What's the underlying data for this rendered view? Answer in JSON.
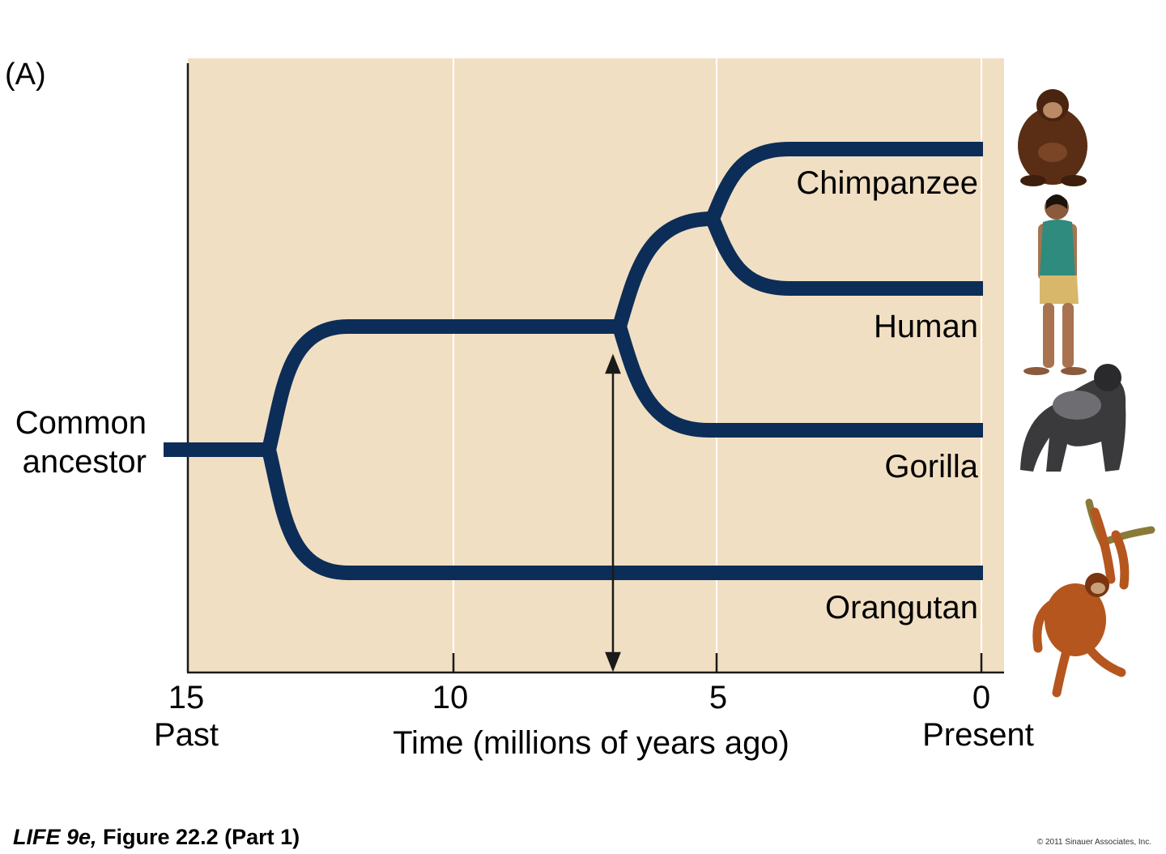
{
  "panel_label": "(A)",
  "root_label": {
    "line1": "Common",
    "line2": "ancestor"
  },
  "taxa": [
    {
      "name": "Chimpanzee",
      "icon": "chimpanzee-icon"
    },
    {
      "name": "Human",
      "icon": "human-icon"
    },
    {
      "name": "Gorilla",
      "icon": "gorilla-icon"
    },
    {
      "name": "Orangutan",
      "icon": "orangutan-icon"
    }
  ],
  "axis": {
    "ticks": [
      "15",
      "10",
      "5",
      "0"
    ],
    "left_label": "Past",
    "title": "Time (millions of years ago)",
    "right_label": "Present"
  },
  "divergence_times_mya": {
    "root_split": 13.5,
    "gorilla_split": 6.9,
    "chimp_human_split": 5.1,
    "marker": 7.0
  },
  "caption": {
    "italic_part": "LIFE 9e,",
    "rest": " Figure 22.2 (Part 1)"
  },
  "copyright": "© 2011 Sinauer Associates, Inc.",
  "colors": {
    "background_panel": "#f1dfc3",
    "branch": "#0c2d57",
    "gridline": "#ffffff"
  }
}
